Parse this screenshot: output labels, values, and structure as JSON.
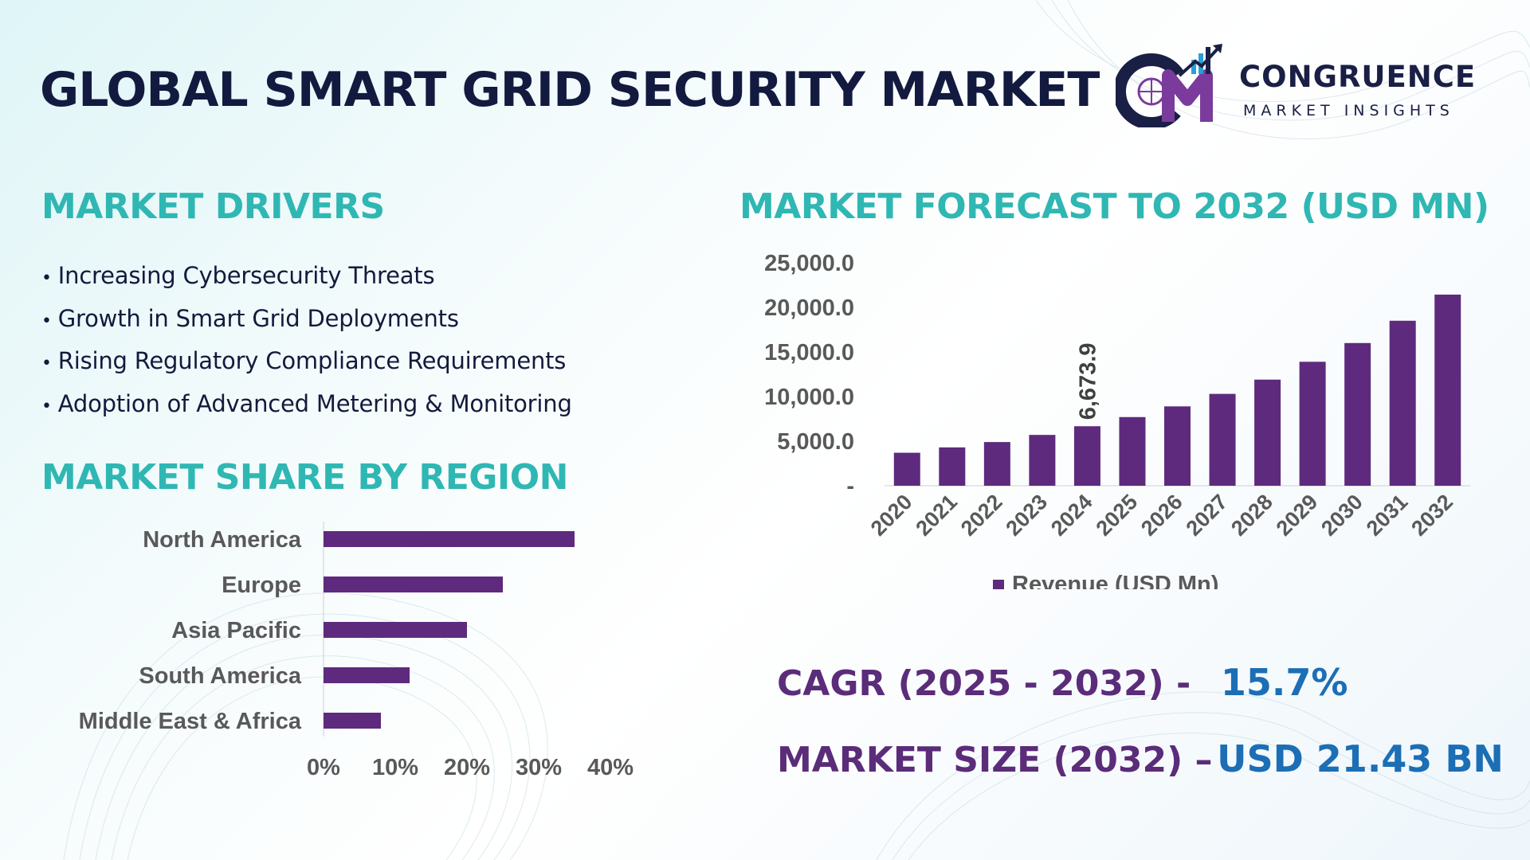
{
  "title": "GLOBAL SMART GRID SECURITY MARKET",
  "logo": {
    "main": "CONGRUENCE",
    "sub": "MARKET INSIGHTS"
  },
  "drivers": {
    "heading": "MARKET DRIVERS",
    "items": [
      "Increasing Cybersecurity Threats",
      "Growth in Smart Grid Deployments",
      "Rising Regulatory Compliance Requirements",
      "Adoption of Advanced Metering & Monitoring"
    ]
  },
  "stats": {
    "cagr_label": "CAGR (2025 - 2032) -",
    "cagr_value": "15.7%",
    "size_label": "MARKET SIZE (2032) –",
    "size_value": "USD 21.43 BN"
  },
  "colors": {
    "bar": "#5e2a7e",
    "heading": "#2fb7b3",
    "title": "#131a3f",
    "stat_label": "#5b2c79",
    "stat_value": "#1c6eb5"
  },
  "chart_data": [
    {
      "type": "bar",
      "orientation": "horizontal",
      "title": "MARKET SHARE BY REGION",
      "categories": [
        "North America",
        "Europe",
        "Asia Pacific",
        "South America",
        "Middle East & Africa"
      ],
      "values": [
        35,
        25,
        20,
        12,
        8
      ],
      "xlim": [
        0,
        40
      ],
      "xticks": [
        0,
        10,
        20,
        30,
        40
      ],
      "xtick_labels": [
        "0%",
        "10%",
        "20%",
        "30%",
        "40%"
      ],
      "grid": false
    },
    {
      "type": "bar",
      "title": "MARKET FORECAST TO 2032 (USD MN)",
      "categories": [
        "2020",
        "2021",
        "2022",
        "2023",
        "2024",
        "2025",
        "2026",
        "2027",
        "2028",
        "2029",
        "2030",
        "2031",
        "2032"
      ],
      "series": [
        {
          "name": "Revenue (USD Mn)",
          "values": [
            3700,
            4300,
            4900,
            5700,
            6673.9,
            7700,
            8900,
            10300,
            11900,
            13900,
            16000,
            18500,
            21430
          ]
        }
      ],
      "data_labels": [
        {
          "category": "2024",
          "text": "6,673.9"
        }
      ],
      "ylim": [
        0,
        25000
      ],
      "yticks": [
        0,
        5000,
        10000,
        15000,
        20000,
        25000
      ],
      "ytick_labels": [
        "-",
        "5,000.0",
        "10,000.0",
        "15,000.0",
        "20,000.0",
        "25,000.0"
      ],
      "legend": "bottom",
      "grid": false
    }
  ]
}
